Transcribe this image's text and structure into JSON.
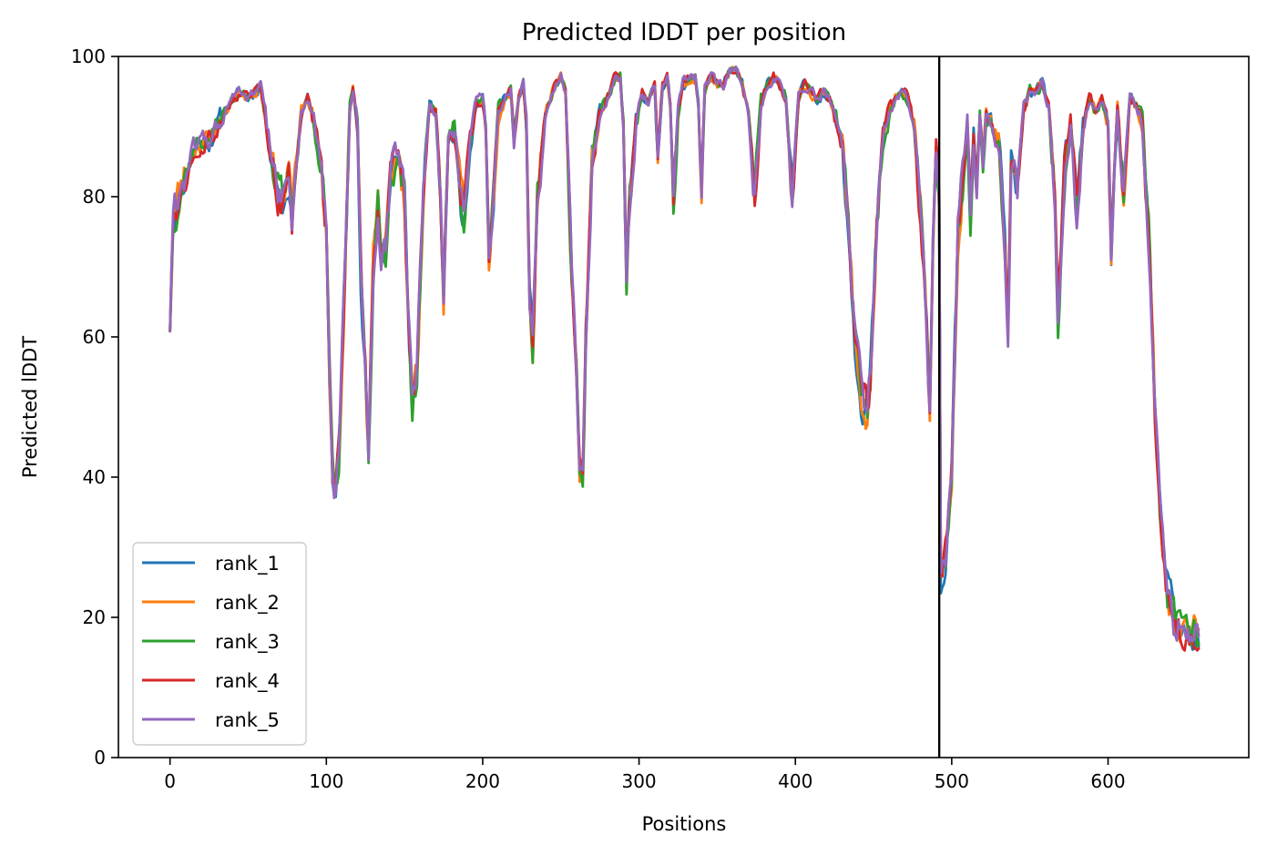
{
  "chart_data": {
    "type": "line",
    "title": "Predicted lDDT per position",
    "xlabel": "Positions",
    "ylabel": "Predicted lDDT",
    "xlim": [
      -33,
      690
    ],
    "ylim": [
      0,
      100
    ],
    "xticks": [
      0,
      100,
      200,
      300,
      400,
      500,
      600
    ],
    "yticks": [
      0,
      20,
      40,
      60,
      80,
      100
    ],
    "xtick_labels": [
      "0",
      "100",
      "200",
      "300",
      "400",
      "500",
      "600"
    ],
    "ytick_labels": [
      "0",
      "20",
      "40",
      "60",
      "80",
      "100"
    ],
    "grid": false,
    "legend_position": "lower-left",
    "vertical_line_x": 492,
    "vertical_line_color": "#000000",
    "base_profile": [
      [
        0,
        62
      ],
      [
        2,
        77
      ],
      [
        5,
        80
      ],
      [
        8,
        82
      ],
      [
        12,
        85
      ],
      [
        18,
        88
      ],
      [
        25,
        88
      ],
      [
        30,
        90
      ],
      [
        35,
        92
      ],
      [
        40,
        94
      ],
      [
        45,
        95
      ],
      [
        50,
        94
      ],
      [
        55,
        95
      ],
      [
        58,
        96
      ],
      [
        62,
        90
      ],
      [
        66,
        84
      ],
      [
        70,
        80
      ],
      [
        73,
        79
      ],
      [
        76,
        83
      ],
      [
        78,
        76
      ],
      [
        80,
        84
      ],
      [
        84,
        92
      ],
      [
        88,
        94
      ],
      [
        92,
        91
      ],
      [
        96,
        85
      ],
      [
        100,
        75
      ],
      [
        102,
        55
      ],
      [
        104,
        40
      ],
      [
        106,
        38
      ],
      [
        108,
        42
      ],
      [
        112,
        70
      ],
      [
        115,
        92
      ],
      [
        117,
        95
      ],
      [
        120,
        90
      ],
      [
        122,
        70
      ],
      [
        125,
        55
      ],
      [
        127,
        43
      ],
      [
        130,
        70
      ],
      [
        133,
        78
      ],
      [
        135,
        72
      ],
      [
        138,
        73
      ],
      [
        141,
        82
      ],
      [
        144,
        86
      ],
      [
        147,
        85
      ],
      [
        150,
        80
      ],
      [
        152,
        65
      ],
      [
        155,
        50
      ],
      [
        158,
        55
      ],
      [
        162,
        80
      ],
      [
        166,
        93
      ],
      [
        170,
        92
      ],
      [
        173,
        80
      ],
      [
        175,
        66
      ],
      [
        178,
        88
      ],
      [
        182,
        90
      ],
      [
        186,
        80
      ],
      [
        188,
        78
      ],
      [
        192,
        88
      ],
      [
        196,
        93
      ],
      [
        200,
        94
      ],
      [
        202,
        90
      ],
      [
        204,
        72
      ],
      [
        206,
        78
      ],
      [
        210,
        92
      ],
      [
        214,
        94
      ],
      [
        218,
        95
      ],
      [
        220,
        88
      ],
      [
        223,
        94
      ],
      [
        226,
        96
      ],
      [
        228,
        90
      ],
      [
        230,
        65
      ],
      [
        232,
        58
      ],
      [
        235,
        80
      ],
      [
        240,
        92
      ],
      [
        245,
        95
      ],
      [
        250,
        97
      ],
      [
        253,
        95
      ],
      [
        256,
        75
      ],
      [
        260,
        55
      ],
      [
        262,
        42
      ],
      [
        264,
        40
      ],
      [
        266,
        60
      ],
      [
        270,
        85
      ],
      [
        275,
        92
      ],
      [
        280,
        94
      ],
      [
        285,
        97
      ],
      [
        288,
        97
      ],
      [
        290,
        90
      ],
      [
        292,
        68
      ],
      [
        294,
        78
      ],
      [
        298,
        90
      ],
      [
        302,
        95
      ],
      [
        306,
        93
      ],
      [
        310,
        96
      ],
      [
        312,
        85
      ],
      [
        315,
        96
      ],
      [
        318,
        97
      ],
      [
        320,
        93
      ],
      [
        322,
        78
      ],
      [
        325,
        92
      ],
      [
        328,
        96
      ],
      [
        332,
        97
      ],
      [
        336,
        97
      ],
      [
        338,
        93
      ],
      [
        340,
        80
      ],
      [
        342,
        95
      ],
      [
        346,
        97
      ],
      [
        350,
        96
      ],
      [
        354,
        96
      ],
      [
        358,
        98
      ],
      [
        362,
        98
      ],
      [
        366,
        96
      ],
      [
        370,
        92
      ],
      [
        374,
        80
      ],
      [
        378,
        93
      ],
      [
        382,
        96
      ],
      [
        386,
        97
      ],
      [
        390,
        96
      ],
      [
        394,
        94
      ],
      [
        398,
        80
      ],
      [
        402,
        94
      ],
      [
        406,
        96
      ],
      [
        410,
        95
      ],
      [
        414,
        94
      ],
      [
        418,
        95
      ],
      [
        422,
        94
      ],
      [
        426,
        91
      ],
      [
        430,
        88
      ],
      [
        434,
        75
      ],
      [
        438,
        60
      ],
      [
        442,
        52
      ],
      [
        446,
        50
      ],
      [
        448,
        55
      ],
      [
        452,
        75
      ],
      [
        456,
        88
      ],
      [
        460,
        92
      ],
      [
        464,
        94
      ],
      [
        468,
        95
      ],
      [
        472,
        94
      ],
      [
        476,
        90
      ],
      [
        480,
        78
      ],
      [
        484,
        60
      ],
      [
        486,
        48
      ],
      [
        488,
        75
      ],
      [
        490,
        88
      ],
      [
        492,
        80
      ],
      [
        493,
        25
      ],
      [
        496,
        28
      ],
      [
        500,
        40
      ],
      [
        504,
        75
      ],
      [
        508,
        85
      ],
      [
        510,
        90
      ],
      [
        512,
        78
      ],
      [
        514,
        88
      ],
      [
        516,
        82
      ],
      [
        518,
        92
      ],
      [
        520,
        85
      ],
      [
        522,
        92
      ],
      [
        526,
        90
      ],
      [
        530,
        88
      ],
      [
        533,
        78
      ],
      [
        536,
        62
      ],
      [
        538,
        85
      ],
      [
        542,
        80
      ],
      [
        546,
        92
      ],
      [
        550,
        95
      ],
      [
        554,
        95
      ],
      [
        558,
        96
      ],
      [
        562,
        93
      ],
      [
        566,
        80
      ],
      [
        568,
        62
      ],
      [
        572,
        82
      ],
      [
        576,
        90
      ],
      [
        580,
        78
      ],
      [
        584,
        90
      ],
      [
        588,
        94
      ],
      [
        592,
        92
      ],
      [
        596,
        94
      ],
      [
        600,
        90
      ],
      [
        602,
        72
      ],
      [
        606,
        92
      ],
      [
        610,
        80
      ],
      [
        614,
        94
      ],
      [
        618,
        93
      ],
      [
        622,
        90
      ],
      [
        626,
        75
      ],
      [
        630,
        50
      ],
      [
        634,
        32
      ],
      [
        638,
        24
      ],
      [
        642,
        20
      ],
      [
        646,
        18
      ],
      [
        650,
        17
      ],
      [
        654,
        17
      ],
      [
        658,
        17
      ]
    ],
    "series": [
      {
        "name": "rank_1",
        "color": "#1f77b4",
        "seed": 11
      },
      {
        "name": "rank_2",
        "color": "#ff7f0e",
        "seed": 23
      },
      {
        "name": "rank_3",
        "color": "#2ca02c",
        "seed": 37
      },
      {
        "name": "rank_4",
        "color": "#d62728",
        "seed": 49
      },
      {
        "name": "rank_5",
        "color": "#9467bd",
        "seed": 61
      }
    ]
  }
}
